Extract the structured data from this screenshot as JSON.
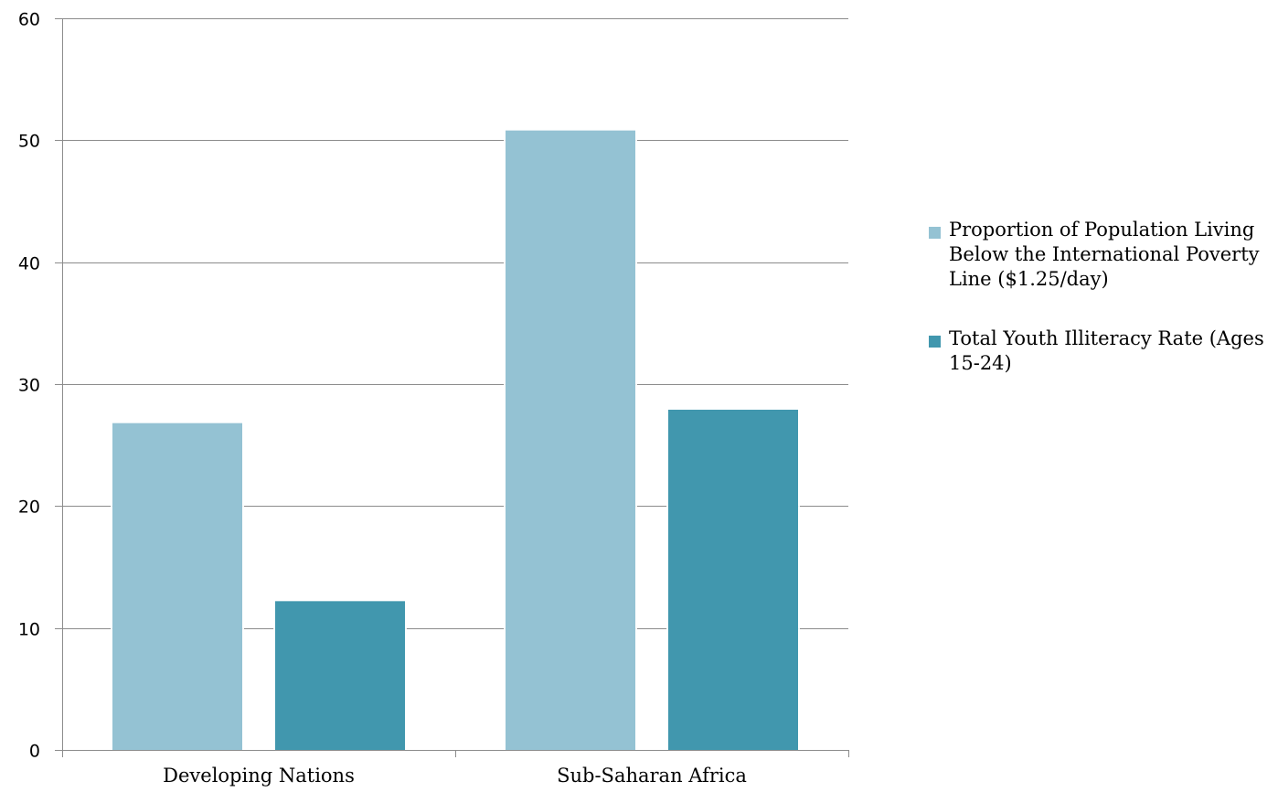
{
  "chart_data": {
    "type": "bar",
    "categories": [
      "Developing Nations",
      "Sub-Saharan Africa"
    ],
    "series": [
      {
        "name": "Proportion of Population Living Below the International Poverty Line ($1.25/day)",
        "values": [
          26.8,
          50.8
        ],
        "color": "#94c2d3"
      },
      {
        "name": "Total Youth Illiteracy Rate (Ages 15-24)",
        "values": [
          12.2,
          27.9
        ],
        "color": "#4197ae"
      }
    ],
    "ylim": [
      0,
      60
    ],
    "yticks": [
      "0",
      "10",
      "20",
      "30",
      "40",
      "50",
      "60"
    ],
    "grid": true,
    "legend_position": "right",
    "title": "",
    "xlabel": "",
    "ylabel": ""
  },
  "legend": {
    "items": [
      {
        "label": "Proportion of Population Living Below the International Poverty Line ($1.25/day)",
        "color": "#94c2d3"
      },
      {
        "label": "Total Youth Illiteracy Rate (Ages 15-24)",
        "color": "#4197ae"
      }
    ]
  }
}
